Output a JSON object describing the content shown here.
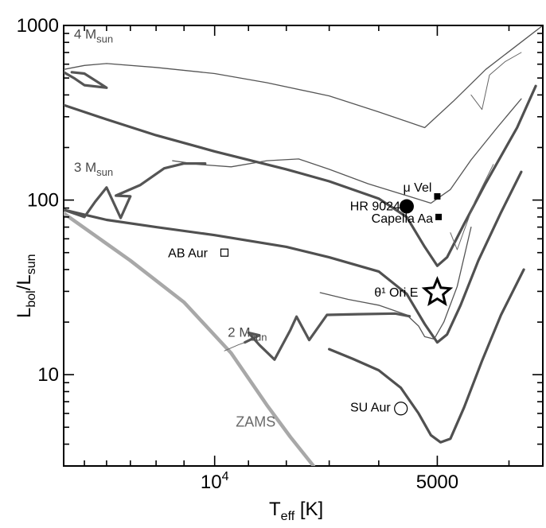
{
  "chart_data": {
    "type": "line",
    "title": "",
    "xlabel_main": "T",
    "xlabel_sub": "eff",
    "xlabel_unit": " [K]",
    "ylabel_main": "L",
    "ylabel_sub1": "bol",
    "ylabel_mid": "/L",
    "ylabel_sub2": "sun",
    "x_scale": "log",
    "y_scale": "log",
    "x_reversed": true,
    "xlim": [
      16000,
      3600
    ],
    "ylim": [
      3,
      1000
    ],
    "grid": false,
    "x_tick_labels": [
      {
        "value": 10000,
        "base": "10",
        "exp": "4"
      },
      {
        "value": 5000,
        "base": "5000",
        "exp": ""
      }
    ],
    "x_minor_ticks": [
      16000,
      15000,
      14000,
      13000,
      12000,
      11000,
      9000,
      8000,
      7000,
      6000,
      4000
    ],
    "y_tick_labels": [
      {
        "value": 10,
        "label": "10"
      },
      {
        "value": 100,
        "label": "100"
      },
      {
        "value": 1000,
        "label": "1000"
      }
    ],
    "y_minor_ticks": [
      3,
      4,
      5,
      6,
      7,
      8,
      9,
      20,
      30,
      40,
      50,
      60,
      70,
      80,
      90,
      200,
      300,
      400,
      500,
      600,
      700,
      800,
      900
    ],
    "mass_labels": [
      {
        "base": "4 M",
        "sub": "sun",
        "t": 15500,
        "l": 840
      },
      {
        "base": "3 M",
        "sub": "sun",
        "t": 15500,
        "l": 145
      },
      {
        "base": "2 M",
        "sub": "sun",
        "t": 9600,
        "l": 16.5
      }
    ],
    "series": [
      {
        "name": "ZAMS",
        "color": "#a8a8a8",
        "width": 4.5,
        "points": [
          [
            16000,
            84
          ],
          [
            13000,
            45
          ],
          [
            11000,
            26
          ],
          [
            9500,
            13.3
          ],
          [
            8500,
            6.7
          ],
          [
            7900,
            4.4
          ],
          [
            7350,
            3
          ]
        ]
      },
      {
        "name": "4 Msun (pre-ZAMS)",
        "color": "#555555",
        "width": 1.3,
        "points": [
          [
            16000,
            560
          ],
          [
            15000,
            590
          ],
          [
            14000,
            605
          ],
          [
            12000,
            575
          ],
          [
            10000,
            530
          ],
          [
            8500,
            470
          ],
          [
            7000,
            395
          ],
          [
            6000,
            320
          ],
          [
            5200,
            260
          ],
          [
            4750,
            370
          ],
          [
            4300,
            560
          ],
          [
            3600,
            1000
          ]
        ]
      },
      {
        "name": "4 Msun (post-ZAMS)",
        "color": "#505050",
        "width": 3.2,
        "points": [
          [
            16000,
            350
          ],
          [
            14000,
            290
          ],
          [
            12000,
            235
          ],
          [
            10000,
            190
          ],
          [
            8000,
            150
          ],
          [
            7000,
            128
          ],
          [
            6000,
            102
          ],
          [
            5500,
            80
          ],
          [
            5200,
            54
          ],
          [
            5000,
            42
          ],
          [
            4850,
            47
          ],
          [
            4600,
            73
          ],
          [
            4300,
            125
          ],
          [
            3900,
            260
          ],
          [
            3680,
            450
          ]
        ]
      },
      {
        "name": "4 Msun (loop)",
        "color": "#555555",
        "width": 3.2,
        "points": [
          [
            16000,
            540
          ],
          [
            15500,
            500
          ],
          [
            15000,
            455
          ],
          [
            14000,
            440
          ],
          [
            15000,
            530
          ],
          [
            15600,
            540
          ]
        ]
      },
      {
        "name": "4 Msun (blue-loop thin)",
        "color": "#666666",
        "width": 1,
        "points": [
          [
            4500,
            400
          ],
          [
            4350,
            330
          ],
          [
            4250,
            520
          ],
          [
            4050,
            620
          ],
          [
            3850,
            700
          ]
        ]
      },
      {
        "name": "3 Msun (pre-ZAMS)",
        "color": "#555555",
        "width": 1.3,
        "points": [
          [
            11400,
            168
          ],
          [
            10500,
            160
          ],
          [
            9500,
            155
          ],
          [
            8500,
            168
          ],
          [
            7700,
            172
          ],
          [
            7000,
            150
          ],
          [
            6200,
            124
          ],
          [
            5500,
            106
          ],
          [
            5100,
            96
          ],
          [
            4800,
            115
          ],
          [
            4500,
            170
          ],
          [
            4150,
            260
          ],
          [
            3850,
            380
          ]
        ]
      },
      {
        "name": "3 Msun (post-ZAMS)",
        "color": "#505050",
        "width": 3.2,
        "points": [
          [
            16000,
            88
          ],
          [
            14000,
            77
          ],
          [
            12000,
            70
          ],
          [
            10000,
            63
          ],
          [
            8000,
            54
          ],
          [
            7000,
            47
          ],
          [
            6000,
            39
          ],
          [
            5500,
            29
          ],
          [
            5200,
            19.5
          ],
          [
            5000,
            15.3
          ],
          [
            4850,
            17
          ],
          [
            4650,
            25
          ],
          [
            4400,
            45
          ],
          [
            4100,
            85
          ],
          [
            3850,
            145
          ]
        ]
      },
      {
        "name": "3 Msun (loop)",
        "color": "#555555",
        "width": 3.2,
        "points": [
          [
            16000,
            88
          ],
          [
            15000,
            80
          ],
          [
            14500,
            98
          ],
          [
            14000,
            118
          ],
          [
            13400,
            79
          ],
          [
            13000,
            105
          ],
          [
            13600,
            106
          ],
          [
            12600,
            122
          ],
          [
            11700,
            152
          ],
          [
            11000,
            162
          ],
          [
            10300,
            162
          ]
        ]
      },
      {
        "name": "3 Msun (blue-loop thin)",
        "color": "#666666",
        "width": 1,
        "points": [
          [
            4800,
            65
          ],
          [
            4700,
            52
          ],
          [
            4600,
            67
          ],
          [
            4450,
            98
          ],
          [
            4200,
            160
          ]
        ]
      },
      {
        "name": "2 Msun (pre-ZAMS)",
        "color": "#555555",
        "width": 1.3,
        "points": [
          [
            7200,
            29.5
          ],
          [
            6600,
            27
          ],
          [
            6000,
            25
          ],
          [
            5500,
            22
          ],
          [
            5300,
            19
          ],
          [
            5200,
            16.5
          ],
          [
            5050,
            16
          ],
          [
            4900,
            20
          ],
          [
            4700,
            32
          ],
          [
            4500,
            70
          ]
        ]
      },
      {
        "name": "2 Msun (post-ZAMS)",
        "color": "#505050",
        "width": 3.2,
        "points": [
          [
            7000,
            14
          ],
          [
            6500,
            12.3
          ],
          [
            6000,
            10.6
          ],
          [
            5600,
            8.4
          ],
          [
            5300,
            6
          ],
          [
            5100,
            4.5
          ],
          [
            4950,
            4.1
          ],
          [
            4800,
            4.3
          ],
          [
            4600,
            6.5
          ],
          [
            4350,
            12
          ],
          [
            4100,
            22
          ],
          [
            3820,
            40
          ]
        ]
      },
      {
        "name": "2 Msun (loop)",
        "color": "#555555",
        "width": 3.2,
        "points": [
          [
            9100,
            15.3
          ],
          [
            8700,
            16.8
          ],
          [
            9000,
            17.4
          ],
          [
            8700,
            14.8
          ],
          [
            8300,
            12.2
          ],
          [
            7900,
            18
          ],
          [
            7750,
            21.5
          ],
          [
            7450,
            15.8
          ],
          [
            7050,
            22
          ],
          [
            6400,
            22.2
          ],
          [
            5700,
            22.4
          ],
          [
            5450,
            21.6
          ]
        ]
      },
      {
        "name": "2 Msun (loop thin)",
        "color": "#666666",
        "width": 1,
        "points": [
          [
            9700,
            13.7
          ],
          [
            9300,
            14.8
          ],
          [
            9100,
            15.3
          ]
        ]
      }
    ],
    "stars": [
      {
        "name": "μ Vel",
        "t": 5000,
        "l": 105,
        "marker": "square-filled",
        "size": 8
      },
      {
        "name": "HR 9024",
        "t": 5500,
        "l": 92,
        "marker": "circle-filled",
        "size": 9
      },
      {
        "name": "Capella Aa",
        "t": 4980,
        "l": 80,
        "marker": "square-filled",
        "size": 8
      },
      {
        "name": "AB Aur",
        "t": 9700,
        "l": 50,
        "marker": "square-open",
        "size": 9
      },
      {
        "name": "θ¹ Ori E",
        "t": 5000,
        "l": 29.5,
        "marker": "star-open",
        "size": 17
      },
      {
        "name": "SU Aur",
        "t": 5600,
        "l": 6.4,
        "marker": "circle-open",
        "size": 8
      }
    ],
    "annotations": [
      {
        "text": "ZAMS",
        "t": 8800,
        "l": 5.05
      }
    ]
  }
}
